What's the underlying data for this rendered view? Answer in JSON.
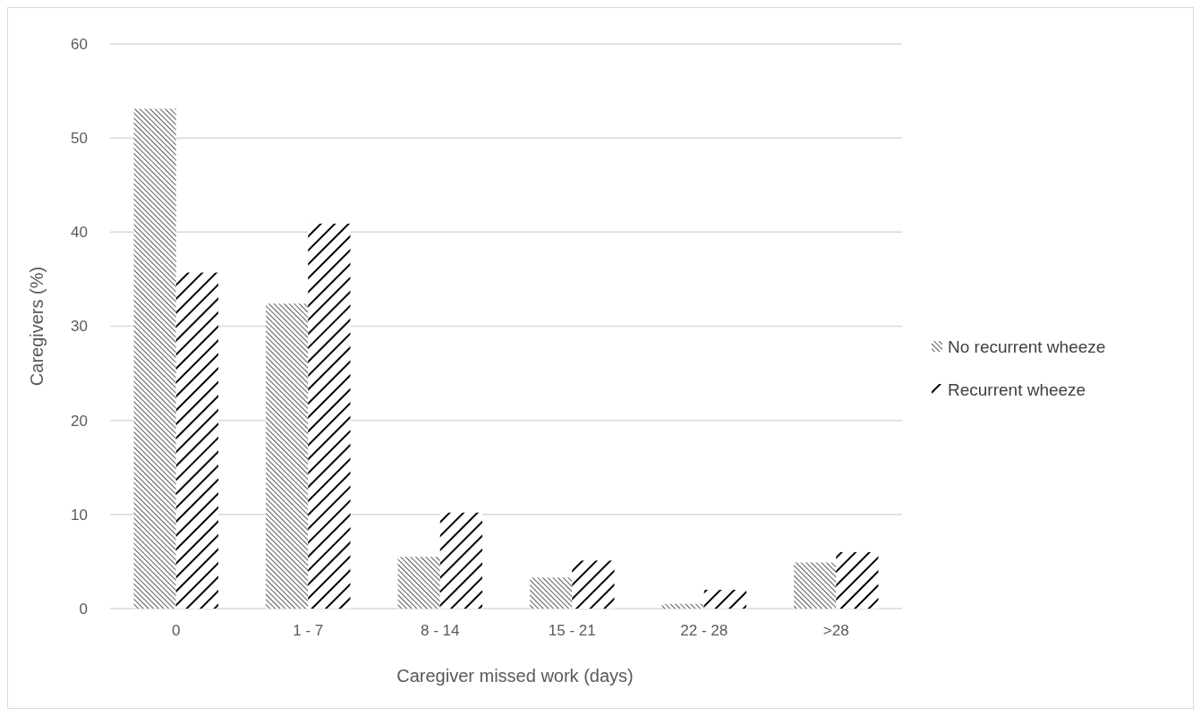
{
  "chart_data": {
    "type": "bar",
    "xlabel": "Caregiver missed work (days)",
    "ylabel": "Caregivers (%)",
    "categories": [
      "0",
      "1 - 7",
      "8 - 14",
      "15 - 21",
      "22 - 28",
      ">28"
    ],
    "series": [
      {
        "name": "No recurrent wheeze",
        "color": "#000000",
        "values": [
          53.1,
          32.4,
          5.5,
          3.3,
          0.5,
          4.9
        ]
      },
      {
        "name": "Recurrent wheeze",
        "color": "#000000",
        "values": [
          35.7,
          40.9,
          10.2,
          5.1,
          2.0,
          6.0
        ]
      }
    ],
    "ylim": [
      0,
      60
    ],
    "yticks": [
      0,
      10,
      20,
      30,
      40,
      50,
      60
    ],
    "grid": "y",
    "legend": "right"
  }
}
